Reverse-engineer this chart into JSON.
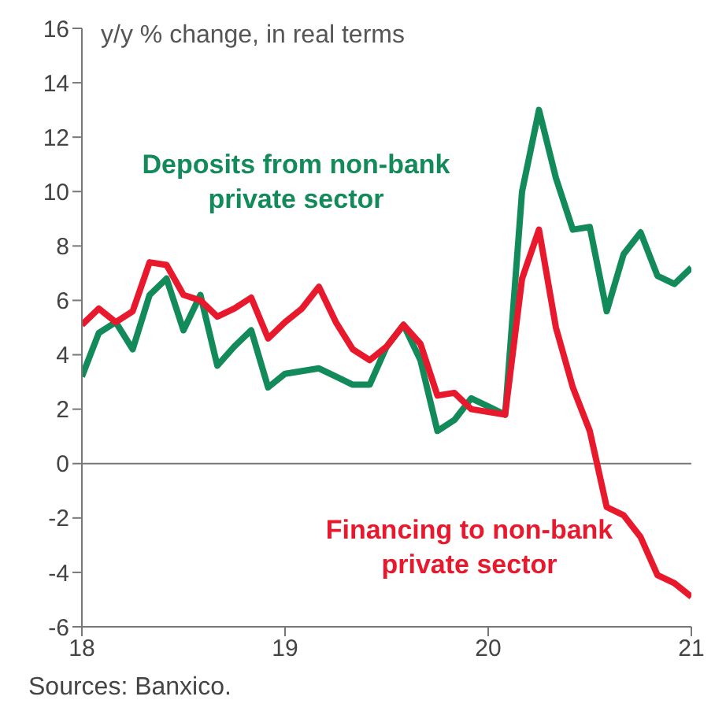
{
  "chart_data": {
    "type": "line",
    "ylabel": "y/y % change, in real terms",
    "annotations": [
      "Sources: Banxico."
    ],
    "x": [
      "2018-01",
      "2018-02",
      "2018-03",
      "2018-04",
      "2018-05",
      "2018-06",
      "2018-07",
      "2018-08",
      "2018-09",
      "2018-10",
      "2018-11",
      "2018-12",
      "2019-01",
      "2019-02",
      "2019-03",
      "2019-04",
      "2019-05",
      "2019-06",
      "2019-07",
      "2019-08",
      "2019-09",
      "2019-10",
      "2019-11",
      "2019-12",
      "2020-01",
      "2020-02",
      "2020-03",
      "2020-04",
      "2020-05",
      "2020-06",
      "2020-07",
      "2020-08",
      "2020-09",
      "2020-10",
      "2020-11",
      "2020-12",
      "2021-01"
    ],
    "series": [
      {
        "name": "Deposits from non-bank private sector",
        "color": "#138a5a",
        "values": [
          3.2,
          4.8,
          5.2,
          4.2,
          6.2,
          6.8,
          4.9,
          6.2,
          3.6,
          4.3,
          4.9,
          2.8,
          3.3,
          3.4,
          3.5,
          3.2,
          2.9,
          2.9,
          4.3,
          5.1,
          3.8,
          1.2,
          1.6,
          2.4,
          2.1,
          1.8,
          10.0,
          13.0,
          10.5,
          8.6,
          8.7,
          5.6,
          7.7,
          8.5,
          6.9,
          6.6,
          7.2
        ]
      },
      {
        "name": "Financing to non-bank private sector",
        "color": "#e8192c",
        "values": [
          5.1,
          5.7,
          5.2,
          5.6,
          7.4,
          7.3,
          6.2,
          6.0,
          5.4,
          5.7,
          6.1,
          4.6,
          5.2,
          5.7,
          6.5,
          5.2,
          4.2,
          3.8,
          4.3,
          5.1,
          4.4,
          2.5,
          2.6,
          2.0,
          1.9,
          1.8,
          6.8,
          8.6,
          5.0,
          2.8,
          1.2,
          -1.6,
          -1.9,
          -2.7,
          -4.1,
          -4.4,
          -4.9
        ]
      }
    ],
    "xlim": [
      "2018-01",
      "2021-01"
    ],
    "xticks": [
      {
        "value": "2018-01",
        "label": "18"
      },
      {
        "value": "2019-01",
        "label": "19"
      },
      {
        "value": "2020-01",
        "label": "20"
      },
      {
        "value": "2021-01",
        "label": "21"
      }
    ],
    "ylim": [
      -6,
      16
    ],
    "yticks": [
      -6,
      -4,
      -2,
      0,
      2,
      4,
      6,
      8,
      10,
      12,
      14,
      16
    ],
    "ref_lines": [
      {
        "axis": "y",
        "value": 0,
        "color": "#777777"
      }
    ],
    "grid": false,
    "legend": false,
    "marker": "none",
    "line_style": "solid"
  }
}
